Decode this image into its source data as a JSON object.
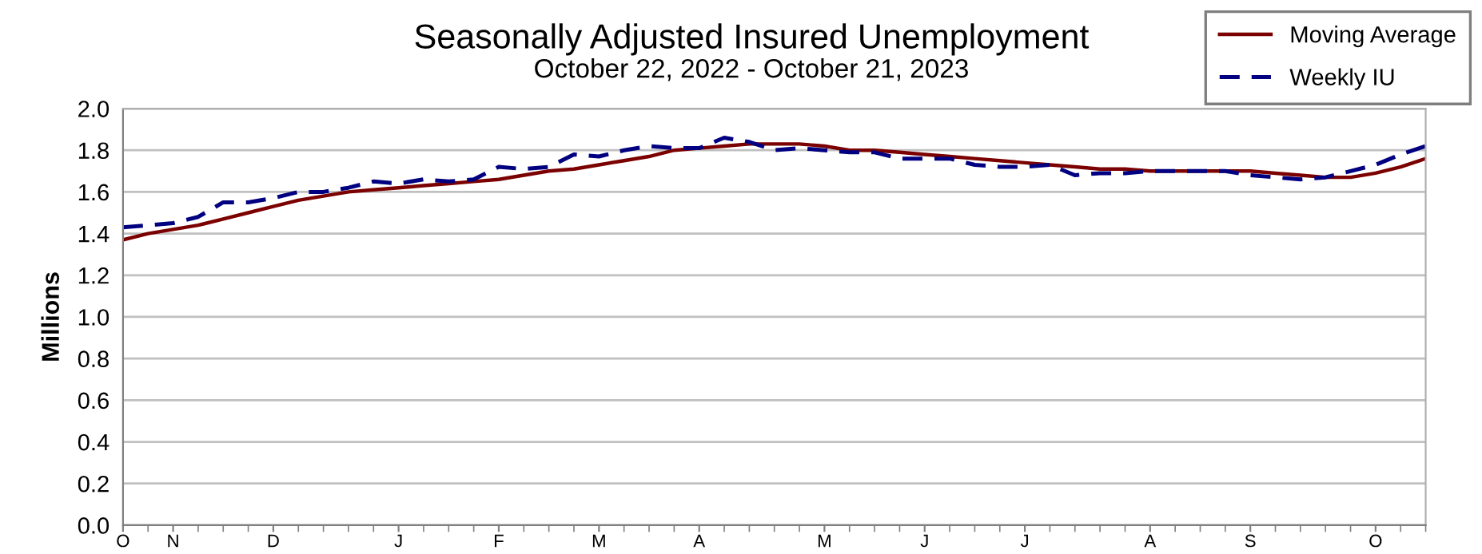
{
  "chart_data": {
    "type": "line",
    "title": "Seasonally Adjusted Insured Unemployment",
    "subtitle": "October 22, 2022 - October 21, 2023",
    "ylabel": "Millions",
    "categories": [
      "O",
      null,
      "N",
      null,
      null,
      null,
      "D",
      null,
      null,
      null,
      null,
      "J",
      null,
      null,
      null,
      "F",
      null,
      null,
      null,
      "M",
      null,
      null,
      null,
      "A",
      null,
      null,
      null,
      null,
      "M",
      null,
      null,
      null,
      "J",
      null,
      null,
      null,
      "J",
      null,
      null,
      null,
      null,
      "A",
      null,
      null,
      null,
      "S",
      null,
      null,
      null,
      null,
      "O",
      null,
      null
    ],
    "series": [
      {
        "name": "Moving Average",
        "color": "#7b0000",
        "line_style": "solid",
        "values": [
          1.37,
          1.4,
          1.42,
          1.44,
          1.47,
          1.5,
          1.53,
          1.56,
          1.58,
          1.6,
          1.61,
          1.62,
          1.63,
          1.64,
          1.65,
          1.66,
          1.68,
          1.7,
          1.71,
          1.73,
          1.75,
          1.77,
          1.8,
          1.81,
          1.82,
          1.83,
          1.83,
          1.83,
          1.82,
          1.8,
          1.8,
          1.79,
          1.78,
          1.77,
          1.76,
          1.75,
          1.74,
          1.73,
          1.72,
          1.71,
          1.71,
          1.7,
          1.7,
          1.7,
          1.7,
          1.7,
          1.69,
          1.68,
          1.67,
          1.67,
          1.69,
          1.72,
          1.76
        ]
      },
      {
        "name": "Weekly IU",
        "color": "#000080",
        "line_style": "dashed",
        "values": [
          1.43,
          1.44,
          1.45,
          1.48,
          1.55,
          1.55,
          1.57,
          1.6,
          1.6,
          1.62,
          1.65,
          1.64,
          1.66,
          1.65,
          1.66,
          1.72,
          1.71,
          1.72,
          1.78,
          1.77,
          1.8,
          1.82,
          1.81,
          1.81,
          1.86,
          1.84,
          1.8,
          1.81,
          1.8,
          1.79,
          1.79,
          1.76,
          1.76,
          1.76,
          1.73,
          1.72,
          1.72,
          1.73,
          1.68,
          1.69,
          1.69,
          1.7,
          1.7,
          1.7,
          1.7,
          1.68,
          1.67,
          1.66,
          1.67,
          1.7,
          1.73,
          1.78,
          1.82
        ]
      }
    ],
    "ylim": [
      0,
      2.0
    ],
    "yticks": [
      {
        "value": 0,
        "label": "0.0"
      },
      {
        "value": 0.2,
        "label": "0.2"
      },
      {
        "value": 0.4,
        "label": "0.4"
      },
      {
        "value": 0.6,
        "label": "0.6"
      },
      {
        "value": 0.8,
        "label": "0.8"
      },
      {
        "value": 1.0,
        "label": "1.0"
      },
      {
        "value": 1.2,
        "label": "1.2"
      },
      {
        "value": 1.4,
        "label": "1.4"
      },
      {
        "value": 1.6,
        "label": "1.6"
      },
      {
        "value": 1.8,
        "label": "1.8"
      },
      {
        "value": 2.0,
        "label": "2.0"
      }
    ],
    "grid": "y",
    "legend": "top right",
    "marker": "none"
  }
}
